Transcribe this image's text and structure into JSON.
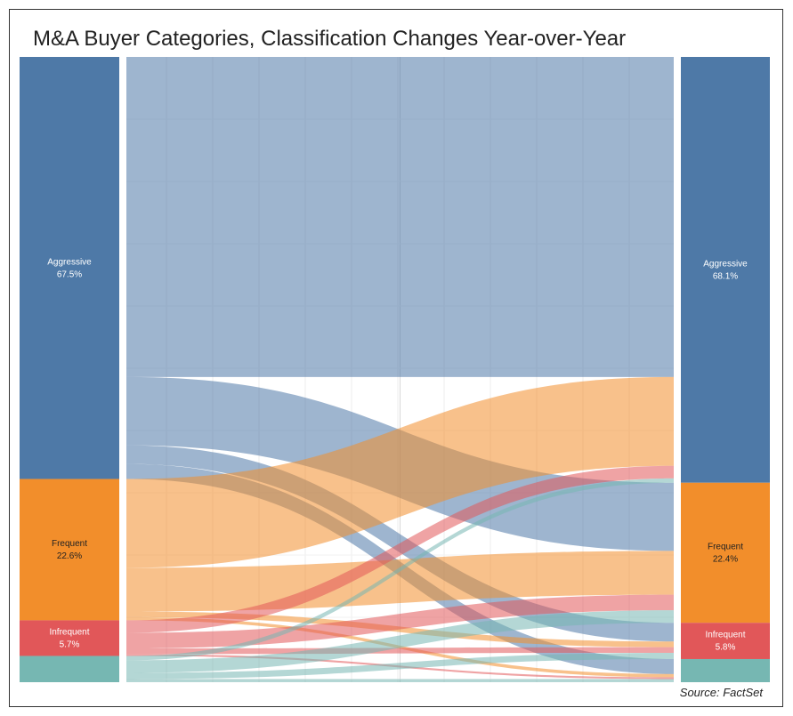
{
  "title": "M&A Buyer Categories, Classification Changes Year-over-Year",
  "source": "Source: FactSet",
  "chart_data": {
    "type": "sankey",
    "categories": [
      {
        "name": "Aggressive",
        "color": "#4e79a7",
        "before_pct": 67.5,
        "after_pct": 68.1,
        "before_label": "67.5%",
        "after_label": "68.1%"
      },
      {
        "name": "Frequent",
        "color": "#f28e2b",
        "before_pct": 22.6,
        "after_pct": 22.4,
        "before_label": "22.6%",
        "after_label": "22.4%"
      },
      {
        "name": "Infrequent",
        "color": "#e15759",
        "before_pct": 5.7,
        "after_pct": 5.8,
        "before_label": "5.7%",
        "after_label": "5.8%"
      },
      {
        "name": "",
        "color": "#76b7b2",
        "before_pct": 4.2,
        "after_pct": 3.7,
        "before_label": "",
        "after_label": ""
      }
    ],
    "flows_pct_of_total": [
      [
        51.2,
        10.9,
        3.0,
        2.4
      ],
      [
        14.2,
        7.0,
        0.9,
        0.5
      ],
      [
        2.0,
        2.5,
        0.9,
        0.3
      ],
      [
        0.7,
        2.0,
        1.0,
        0.5
      ]
    ]
  }
}
